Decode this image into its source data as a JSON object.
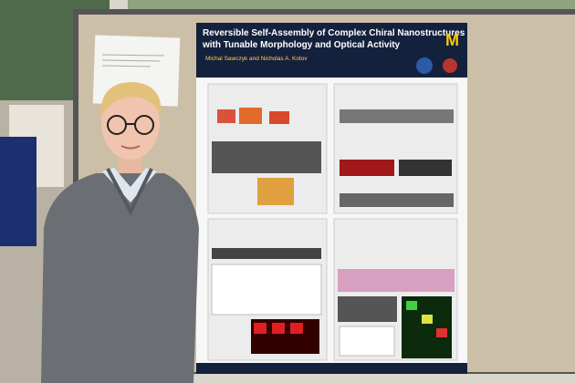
{
  "poster": {
    "title_lines": [
      "Reversible Self-Assembly of Complex Chiral Nanostructures",
      "with Tunable Morphology and Optical Activity"
    ],
    "authors": "Michal Sawczyk and Nicholas A. Kotov",
    "logo": "M"
  }
}
